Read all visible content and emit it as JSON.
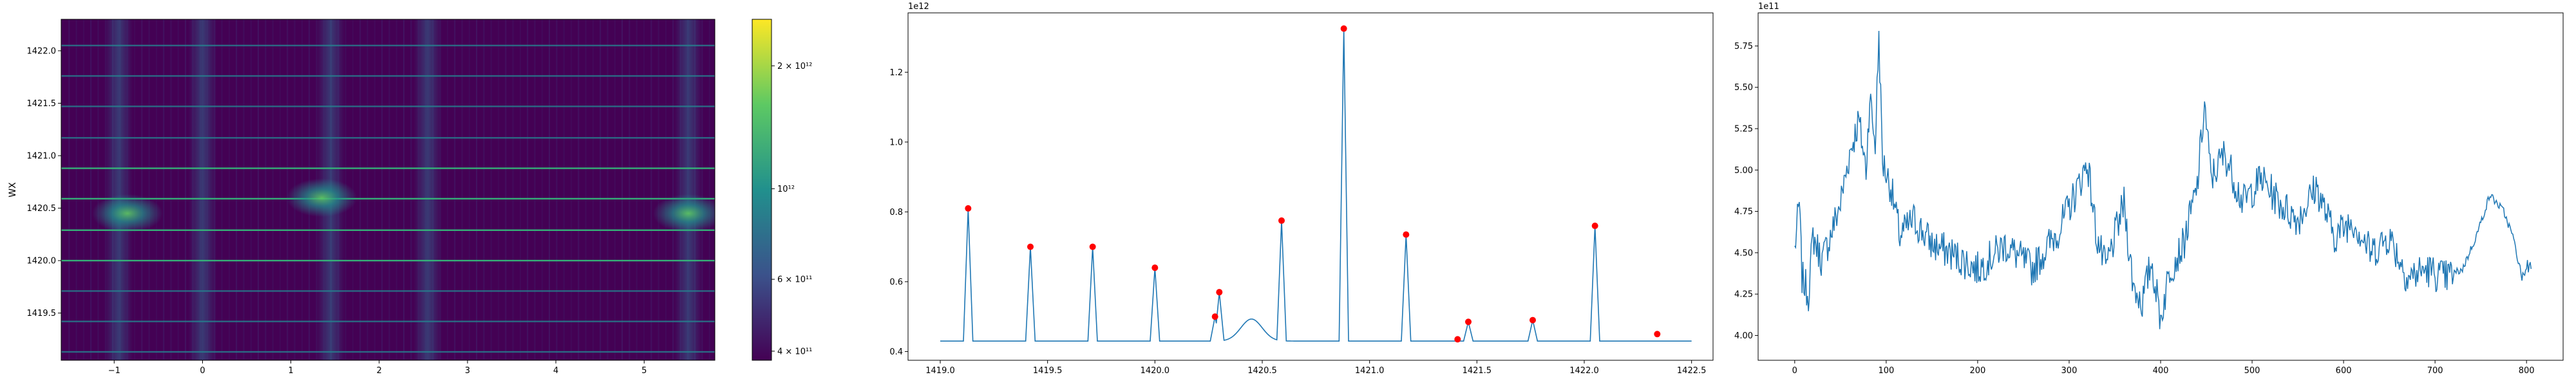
{
  "chart_data": [
    {
      "type": "heatmap",
      "ylabel": "WX",
      "xlabel": "",
      "xlim": [
        -1.6,
        5.8
      ],
      "ylim": [
        1419.05,
        1422.3
      ],
      "x_ticks": [
        "−1",
        "0",
        "1",
        "2",
        "3",
        "4",
        "5"
      ],
      "y_ticks": [
        "1419.5",
        "1420.0",
        "1420.5",
        "1421.0",
        "1421.5",
        "1422.0"
      ],
      "horizontal_lines_y": [
        1419.13,
        1419.42,
        1419.71,
        1420.0,
        1420.29,
        1420.59,
        1420.88,
        1421.17,
        1421.47,
        1421.76,
        1422.05
      ],
      "bright_blobs": [
        {
          "x": -0.85,
          "y": 1420.45
        },
        {
          "x": 1.35,
          "y": 1420.6
        },
        {
          "x": 5.5,
          "y": 1420.45
        }
      ],
      "vertical_bands_x": [
        -0.95,
        0.0,
        1.45,
        2.55,
        5.5
      ],
      "colorbar": {
        "scale": "log",
        "range": [
          380000000000.0,
          2600000000000.0
        ],
        "tick_labels": [
          {
            "value": 400000000000.0,
            "label": "4 × 10¹¹"
          },
          {
            "value": 600000000000.0,
            "label": "6 × 10¹¹"
          },
          {
            "value": 1000000000000.0,
            "label": "10¹²"
          },
          {
            "value": 2000000000000.0,
            "label": "2 × 10¹²"
          }
        ],
        "colormap": [
          "#440154",
          "#3b528b",
          "#21908d",
          "#5dc963",
          "#fde725"
        ]
      }
    },
    {
      "type": "line",
      "title": "",
      "offset_label": "1e12",
      "xlim": [
        1418.85,
        1422.6
      ],
      "ylim": [
        0.375,
        1.37
      ],
      "x_ticks": [
        "1419.0",
        "1419.5",
        "1420.0",
        "1420.5",
        "1421.0",
        "1421.5",
        "1422.0",
        "1422.5"
      ],
      "y_ticks": [
        "0.4",
        "0.6",
        "0.8",
        "1.0",
        "1.2"
      ],
      "baseline": 0.43,
      "line_color": "#1f77b4",
      "peak_color": "#ff0000",
      "peaks": [
        {
          "x": 1419.13,
          "y": 0.81
        },
        {
          "x": 1419.42,
          "y": 0.7
        },
        {
          "x": 1419.71,
          "y": 0.7
        },
        {
          "x": 1420.0,
          "y": 0.64
        },
        {
          "x": 1420.28,
          "y": 0.5
        },
        {
          "x": 1420.3,
          "y": 0.57
        },
        {
          "x": 1420.59,
          "y": 0.775
        },
        {
          "x": 1420.88,
          "y": 1.325
        },
        {
          "x": 1421.17,
          "y": 0.735
        },
        {
          "x": 1421.41,
          "y": 0.435
        },
        {
          "x": 1421.46,
          "y": 0.485
        },
        {
          "x": 1421.76,
          "y": 0.49
        },
        {
          "x": 1422.05,
          "y": 0.76
        },
        {
          "x": 1422.34,
          "y": 0.45
        }
      ]
    },
    {
      "type": "line",
      "title": "",
      "offset_label": "1e11",
      "xlim": [
        -40,
        840
      ],
      "ylim": [
        3.85,
        5.95
      ],
      "x_ticks": [
        "0",
        "100",
        "200",
        "300",
        "400",
        "500",
        "600",
        "700",
        "800"
      ],
      "y_ticks": [
        "4.00",
        "4.25",
        "4.50",
        "4.75",
        "5.00",
        "5.25",
        "5.50",
        "5.75"
      ],
      "line_color": "#1f77b4",
      "anchors": [
        [
          0,
          4.52
        ],
        [
          5,
          4.8
        ],
        [
          8,
          4.35
        ],
        [
          15,
          4.25
        ],
        [
          20,
          4.6
        ],
        [
          30,
          4.45
        ],
        [
          40,
          4.62
        ],
        [
          50,
          4.8
        ],
        [
          60,
          5.1
        ],
        [
          70,
          5.3
        ],
        [
          78,
          5.0
        ],
        [
          82,
          5.45
        ],
        [
          88,
          5.15
        ],
        [
          92,
          5.82
        ],
        [
          96,
          5.05
        ],
        [
          105,
          4.9
        ],
        [
          115,
          4.6
        ],
        [
          130,
          4.7
        ],
        [
          150,
          4.55
        ],
        [
          170,
          4.5
        ],
        [
          200,
          4.4
        ],
        [
          230,
          4.55
        ],
        [
          260,
          4.4
        ],
        [
          290,
          4.65
        ],
        [
          310,
          4.9
        ],
        [
          320,
          5.05
        ],
        [
          330,
          4.6
        ],
        [
          340,
          4.4
        ],
        [
          360,
          4.8
        ],
        [
          370,
          4.3
        ],
        [
          380,
          4.2
        ],
        [
          390,
          4.45
        ],
        [
          400,
          4.1
        ],
        [
          410,
          4.4
        ],
        [
          425,
          4.55
        ],
        [
          440,
          4.9
        ],
        [
          448,
          5.4
        ],
        [
          455,
          4.95
        ],
        [
          470,
          5.1
        ],
        [
          490,
          4.8
        ],
        [
          510,
          4.95
        ],
        [
          530,
          4.8
        ],
        [
          550,
          4.7
        ],
        [
          570,
          4.9
        ],
        [
          590,
          4.6
        ],
        [
          610,
          4.7
        ],
        [
          630,
          4.5
        ],
        [
          650,
          4.6
        ],
        [
          670,
          4.35
        ],
        [
          690,
          4.4
        ],
        [
          710,
          4.35
        ],
        [
          730,
          4.4
        ],
        [
          745,
          4.6
        ],
        [
          760,
          4.85
        ],
        [
          775,
          4.75
        ],
        [
          785,
          4.6
        ],
        [
          795,
          4.35
        ],
        [
          800,
          4.4
        ],
        [
          805,
          4.47
        ]
      ]
    }
  ]
}
